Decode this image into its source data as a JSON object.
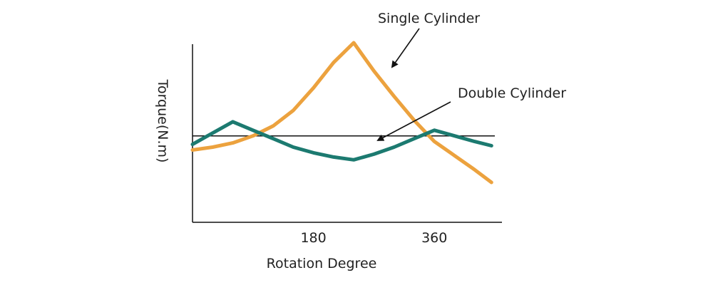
{
  "chart_data": {
    "type": "line",
    "title": "",
    "xlabel": "Rotation Degree",
    "ylabel": "Torque(N.m)",
    "xlim": [
      0,
      450
    ],
    "ylim": [
      0,
      100
    ],
    "xticks": [
      180,
      360
    ],
    "xtick_labels": [
      "180",
      "360"
    ],
    "grid": false,
    "reference_line": {
      "y": 34
    },
    "series": [
      {
        "name": "Single Cylinder",
        "color": "#ECA23E",
        "x": [
          0,
          30,
          60,
          90,
          120,
          150,
          180,
          210,
          240,
          270,
          300,
          330,
          360,
          390,
          420,
          445
        ],
        "y": [
          24,
          26,
          29,
          34,
          41,
          52,
          68,
          86,
          100,
          80,
          62,
          45,
          30,
          20,
          10,
          1
        ]
      },
      {
        "name": "Double Cylinder",
        "color": "#1C7A70",
        "x": [
          0,
          30,
          60,
          90,
          120,
          150,
          180,
          210,
          240,
          270,
          300,
          330,
          360,
          390,
          420,
          445
        ],
        "y": [
          28,
          36,
          44,
          38,
          32,
          26,
          22,
          19,
          17,
          21,
          26,
          32,
          38,
          34,
          30,
          27
        ]
      }
    ],
    "annotations": [
      {
        "text": "Single Cylinder",
        "points_to_series": "Single Cylinder"
      },
      {
        "text": "Double Cylinder",
        "points_to_series": "Double Cylinder"
      }
    ]
  }
}
